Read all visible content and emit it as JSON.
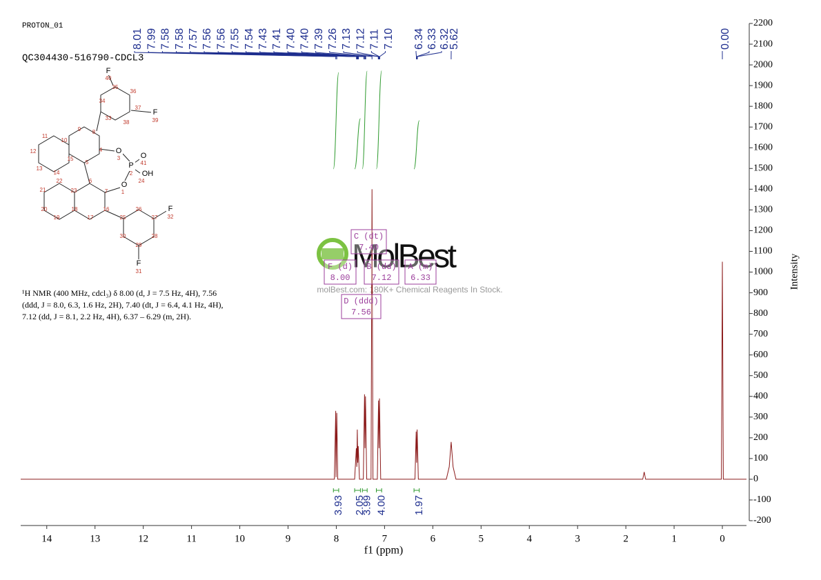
{
  "header": {
    "experiment": "PROTON_01",
    "sample": "QC304430-516790-CDCL3"
  },
  "chart_data": {
    "type": "nmr",
    "xlabel": "f1 (ppm)",
    "ylabel": "Intensity",
    "xlim": [
      14.54,
      -0.5
    ],
    "xticks": [
      14,
      13,
      12,
      11,
      10,
      9,
      8,
      7,
      6,
      5,
      4,
      3,
      2,
      1,
      0
    ],
    "ylim": [
      -200,
      2200
    ],
    "yticks": [
      -200,
      -100,
      0,
      100,
      200,
      300,
      400,
      500,
      600,
      700,
      800,
      900,
      1000,
      1100,
      1200,
      1300,
      1400,
      1500,
      1600,
      1700,
      1800,
      1900,
      2000,
      2100,
      2200
    ],
    "series": [
      {
        "color": "#8b1a1a",
        "x": [
          14.54,
          8.04,
          8.012,
          8.005,
          7.99,
          7.97,
          7.62,
          7.585,
          7.575,
          7.565,
          7.555,
          7.545,
          7.52,
          7.44,
          7.415,
          7.405,
          7.395,
          7.37,
          7.28,
          7.26,
          7.24,
          7.15,
          7.125,
          7.115,
          7.105,
          7.08,
          6.37,
          6.345,
          6.335,
          6.325,
          6.3,
          5.72,
          5.66,
          5.62,
          5.58,
          5.52,
          1.65,
          1.62,
          1.59,
          0.02,
          0.0,
          -0.02,
          -0.5
        ],
        "values": [
          0,
          0,
          330,
          10,
          320,
          0,
          0,
          150,
          60,
          240,
          80,
          160,
          0,
          0,
          410,
          150,
          400,
          0,
          0,
          1400,
          0,
          0,
          380,
          150,
          390,
          0,
          0,
          230,
          80,
          240,
          0,
          0,
          60,
          180,
          60,
          0,
          0,
          35,
          0,
          0,
          1050,
          0,
          0
        ]
      }
    ],
    "peak_labels": [
      8.01,
      7.99,
      7.58,
      7.58,
      7.57,
      7.56,
      7.56,
      7.55,
      7.54,
      7.43,
      7.41,
      {
        "value": 7.4,
        "label": "7.40"
      },
      {
        "value": 7.4,
        "label": "7.40"
      },
      7.39,
      7.26,
      7.13,
      7.12,
      7.11,
      {
        "value": 7.1,
        "label": "7.10"
      },
      6.34,
      6.33,
      6.32,
      5.62,
      {
        "value": 0,
        "label": "0.00"
      }
    ],
    "integrals": [
      {
        "range": [
          8.06,
          7.95
        ],
        "value": 3.93
      },
      {
        "range": [
          7.62,
          7.5
        ],
        "value": 2.05
      },
      {
        "range": [
          7.46,
          7.36
        ],
        "value": 3.99
      },
      {
        "range": [
          7.17,
          7.06
        ],
        "value": 4,
        "label": "4.00"
      },
      {
        "range": [
          6.39,
          6.28
        ],
        "value": 1.97
      }
    ],
    "multiplets": [
      {
        "name": "C (dt)",
        "shift": {
          "value": 7.4,
          "label": "7.40"
        }
      },
      {
        "name": "F (d)",
        "shift": {
          "value": 8,
          "label": "8.00"
        }
      },
      {
        "name": "B (dd)",
        "shift": 7.12
      },
      {
        "name": "A (m)",
        "shift": 6.33
      },
      {
        "name": "D (ddd)",
        "shift": 7.56
      }
    ]
  },
  "description": [
    "¹H NMR (400 MHz, cdcl₃) δ 8.00 (d, J = 7.5 Hz, 4H), 7.56",
    "(ddd, J = 8.0, 6.3, 1.6 Hz, 2H), 7.40 (dt, J = 6.4, 4.1 Hz, 4H),",
    "7.12 (dd, J = 8.1, 2.2 Hz, 4H), 6.37 – 6.29 (m, 2H)."
  ],
  "structure_labels": [
    "F",
    "40",
    "35",
    "36",
    "34",
    "37",
    "F",
    "39",
    "33",
    "38",
    "9",
    "8",
    "11",
    "10",
    "4",
    "O",
    "3",
    "O",
    "P",
    "41",
    "12",
    "15",
    "5",
    "2",
    "OH",
    "24",
    "13",
    "14",
    "6",
    "O",
    "1",
    "22",
    "21",
    "23",
    "7",
    "20",
    "18",
    "16",
    "26",
    "F",
    "27",
    "32",
    "19",
    "17",
    "25",
    "30",
    "28",
    "29",
    "F",
    "31"
  ],
  "watermark": {
    "brand": "MolBest",
    "tagline": "molBest.com: 180K+ Chemical Reagents In Stock."
  }
}
